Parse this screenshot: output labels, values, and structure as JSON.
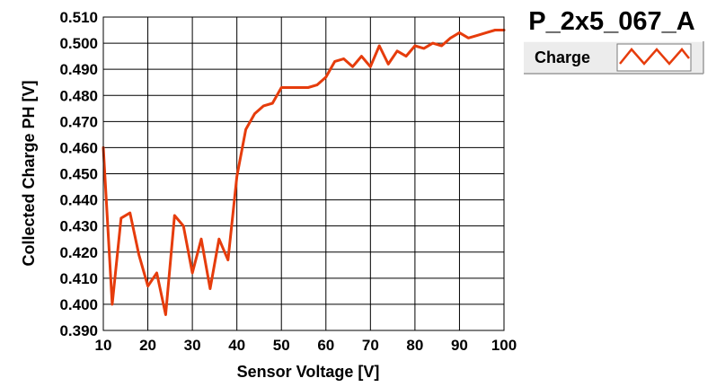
{
  "chart_data": {
    "type": "line",
    "title": "P_2x5_067_A",
    "xlabel": "Sensor Voltage [V]",
    "ylabel": "Collected Charge PH [V]",
    "xlim": [
      10,
      100
    ],
    "ylim": [
      0.39,
      0.51
    ],
    "xticks": [
      10,
      20,
      30,
      40,
      50,
      60,
      70,
      80,
      90,
      100
    ],
    "xtick_labels": [
      "10",
      "20",
      "30",
      "40",
      "50",
      "60",
      "70",
      "80",
      "90",
      "100"
    ],
    "yticks": [
      0.39,
      0.4,
      0.41,
      0.42,
      0.43,
      0.44,
      0.45,
      0.46,
      0.47,
      0.48,
      0.49,
      0.5,
      0.51
    ],
    "ytick_labels": [
      "0.390",
      "0.400",
      "0.410",
      "0.420",
      "0.430",
      "0.440",
      "0.450",
      "0.460",
      "0.470",
      "0.480",
      "0.490",
      "0.500",
      "0.510"
    ],
    "grid": true,
    "legend_position": "top-right",
    "series": [
      {
        "name": "Charge",
        "color": "#e63c0c",
        "x": [
          10,
          12,
          14,
          16,
          18,
          20,
          22,
          24,
          26,
          28,
          30,
          32,
          34,
          36,
          38,
          40,
          42,
          44,
          46,
          48,
          50,
          52,
          54,
          56,
          58,
          60,
          62,
          64,
          66,
          68,
          70,
          72,
          74,
          76,
          78,
          80,
          82,
          84,
          86,
          88,
          90,
          92,
          94,
          96,
          98,
          100
        ],
        "y": [
          0.46,
          0.4,
          0.433,
          0.435,
          0.419,
          0.407,
          0.412,
          0.396,
          0.434,
          0.43,
          0.412,
          0.425,
          0.406,
          0.425,
          0.417,
          0.449,
          0.467,
          0.473,
          0.476,
          0.477,
          0.483,
          0.483,
          0.483,
          0.483,
          0.484,
          0.487,
          0.493,
          0.494,
          0.491,
          0.495,
          0.491,
          0.499,
          0.492,
          0.497,
          0.495,
          0.499,
          0.498,
          0.5,
          0.499,
          0.502,
          0.504,
          0.502,
          0.503,
          0.504,
          0.505,
          0.505
        ]
      }
    ]
  }
}
